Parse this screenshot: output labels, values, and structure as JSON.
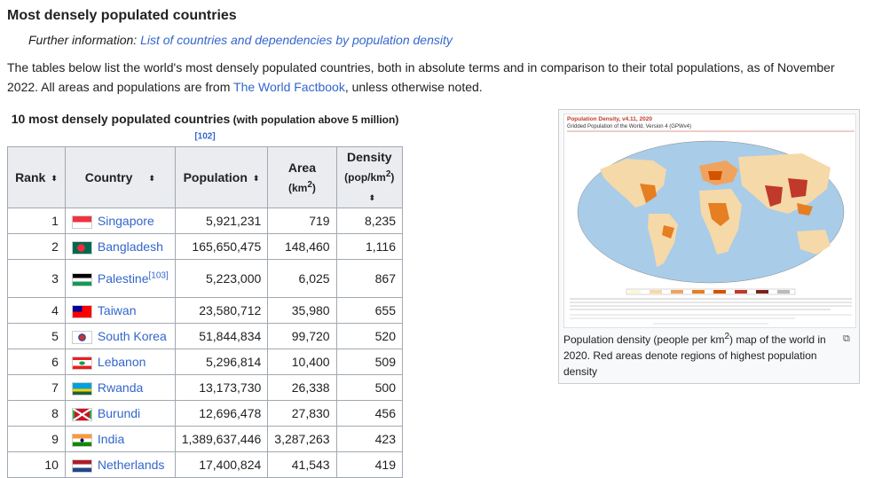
{
  "heading": "Most densely populated countries",
  "hatnote": {
    "prefix": "Further information: ",
    "link": "List of countries and dependencies by population density"
  },
  "intro": {
    "before": "The tables below list the world's most densely populated countries, both in absolute terms and in comparison to their total populations, as of November 2022. All areas and populations are from ",
    "link": "The World Factbook",
    "after": ", unless otherwise noted."
  },
  "table": {
    "caption": "10 most densely populated countries",
    "caption_small": " (with population above 5 million)",
    "caption_ref": "[102]",
    "headers": {
      "rank": "Rank",
      "country": "Country",
      "population": "Population",
      "area": "Area",
      "area_unit": "(km",
      "density": "Density",
      "density_unit": "(pop/km",
      "sq": "2",
      "close": ")"
    },
    "sort_icon": "⬍",
    "rows": [
      {
        "rank": "1",
        "country": "Singapore",
        "ref": "",
        "population": "5,921,231",
        "area": "719",
        "density": "8,235"
      },
      {
        "rank": "2",
        "country": "Bangladesh",
        "ref": "",
        "population": "165,650,475",
        "area": "148,460",
        "density": "1,116"
      },
      {
        "rank": "3",
        "country": "Palestine",
        "ref": "[103]",
        "population": "5,223,000",
        "area": "6,025",
        "density": "867"
      },
      {
        "rank": "4",
        "country": "Taiwan",
        "ref": "",
        "population": "23,580,712",
        "area": "35,980",
        "density": "655"
      },
      {
        "rank": "5",
        "country": "South Korea",
        "ref": "",
        "population": "51,844,834",
        "area": "99,720",
        "density": "520"
      },
      {
        "rank": "6",
        "country": "Lebanon",
        "ref": "",
        "population": "5,296,814",
        "area": "10,400",
        "density": "509"
      },
      {
        "rank": "7",
        "country": "Rwanda",
        "ref": "",
        "population": "13,173,730",
        "area": "26,338",
        "density": "500"
      },
      {
        "rank": "8",
        "country": "Burundi",
        "ref": "",
        "population": "12,696,478",
        "area": "27,830",
        "density": "456"
      },
      {
        "rank": "9",
        "country": "India",
        "ref": "",
        "population": "1,389,637,446",
        "area": "3,287,263",
        "density": "423"
      },
      {
        "rank": "10",
        "country": "Netherlands",
        "ref": "",
        "population": "17,400,824",
        "area": "41,543",
        "density": "419"
      }
    ]
  },
  "thumb": {
    "map_title": "Population Density, v4.11, 2020",
    "map_subtitle": "Gridded Population of the World, Version 4 (GPWv4)",
    "caption_before": "Population density (people per km",
    "caption_sq": "2",
    "caption_after": ") map of the world in 2020. Red areas denote regions of highest population density",
    "enlarge_icon": "⧉"
  },
  "colors": {
    "link": "#3366cc",
    "header_bg": "#eaecf0",
    "border": "#a2a9b1"
  }
}
